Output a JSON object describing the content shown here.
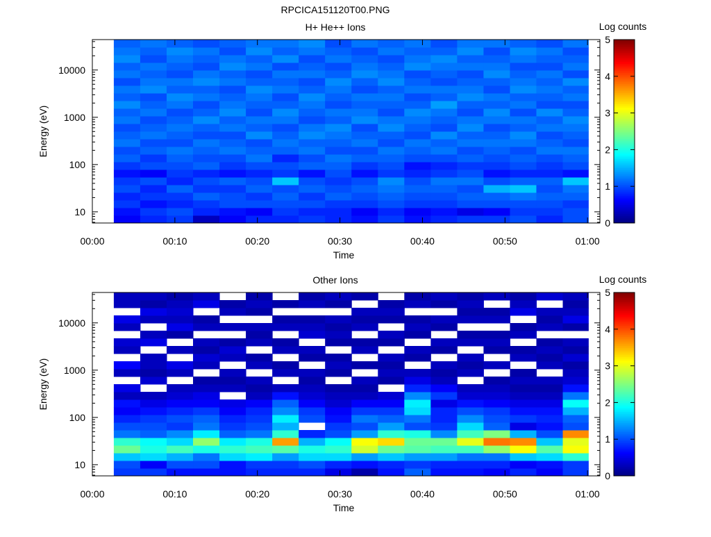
{
  "title": "RPCICA151120T00.PNG",
  "chart_data": [
    {
      "type": "heatmap",
      "title": "H+ He++ Ions",
      "xlabel": "Time",
      "ylabel": "Energy (eV)",
      "colorbar_label": "Log counts",
      "colorbar_ticks": [
        "0",
        "1",
        "2",
        "3",
        "4",
        "5"
      ],
      "clim": [
        0,
        5
      ],
      "colormap": "jet",
      "xlim_min": [
        0,
        61.5
      ],
      "x_ticks": [
        "00:00",
        "00:10",
        "00:20",
        "00:30",
        "00:40",
        "00:50",
        "01:00"
      ],
      "yscale": "log",
      "ylim": [
        5.8,
        44000
      ],
      "y_ticks": [
        "10",
        "100",
        "1000",
        "10000"
      ],
      "time_bin_start_min": [
        2.6,
        5.8,
        9.0,
        12.2,
        15.4,
        18.6,
        21.8,
        25.0,
        28.2,
        31.4,
        34.6,
        37.8,
        41.0,
        44.2,
        47.4,
        50.6,
        53.8,
        57.0
      ],
      "time_bin_end_min": 60.1,
      "energy_bins": 24,
      "values": [
        [
          0.6,
          0.7,
          0.9,
          0.8,
          1.0,
          0.9,
          0.7,
          0.9,
          1.1,
          1.0,
          1.2,
          1.1,
          1.0,
          1.2,
          1.1,
          1.3,
          1.1,
          1.2,
          1.0,
          1.2,
          1.1,
          1.3,
          1.2,
          1.1
        ],
        [
          0.8,
          0.9,
          0.7,
          0.9,
          0.8,
          1.0,
          0.6,
          1.0,
          0.9,
          1.1,
          1.0,
          1.2,
          1.1,
          1.0,
          1.2,
          1.1,
          1.0,
          1.3,
          1.2,
          1.1,
          1.2,
          1.0,
          1.1,
          1.2
        ],
        [
          0.9,
          1.0,
          0.8,
          0.9,
          1.1,
          0.8,
          0.9,
          1.0,
          1.1,
          1.2,
          1.0,
          1.1,
          1.2,
          1.1,
          1.0,
          1.2,
          1.3,
          1.1,
          1.2,
          1.0,
          1.1,
          1.2,
          1.3,
          1.1
        ],
        [
          0.3,
          0.8,
          0.9,
          1.1,
          0.9,
          1.0,
          0.8,
          1.1,
          1.0,
          1.1,
          1.2,
          1.0,
          1.1,
          1.3,
          1.1,
          1.0,
          1.2,
          1.1,
          1.3,
          1.2,
          1.0,
          1.1,
          1.2,
          1.0
        ],
        [
          0.6,
          0.7,
          1.0,
          1.0,
          0.9,
          1.1,
          0.7,
          0.9,
          1.0,
          1.2,
          1.1,
          1.0,
          1.2,
          1.1,
          1.3,
          1.2,
          1.1,
          1.0,
          1.2,
          1.1,
          1.3,
          1.2,
          1.0,
          1.1
        ],
        [
          0.8,
          0.6,
          1.0,
          0.9,
          1.1,
          1.0,
          0.8,
          1.0,
          1.2,
          1.1,
          1.0,
          1.3,
          1.1,
          1.2,
          1.0,
          1.1,
          1.2,
          1.3,
          1.1,
          1.0,
          1.2,
          1.1,
          1.3,
          1.2
        ],
        [
          0.8,
          0.9,
          1.0,
          1.1,
          1.0,
          1.6,
          0.9,
          1.0,
          0.8,
          1.1,
          1.2,
          1.1,
          1.0,
          1.2,
          1.3,
          1.1,
          1.0,
          1.2,
          1.1,
          1.2,
          1.0,
          1.3,
          1.1,
          1.2
        ],
        [
          0.9,
          0.8,
          1.0,
          0.9,
          1.1,
          1.0,
          0.7,
          1.1,
          1.0,
          1.2,
          1.1,
          1.3,
          1.2,
          1.0,
          1.1,
          1.2,
          1.3,
          1.1,
          1.0,
          1.2,
          1.1,
          1.0,
          1.2,
          1.3
        ],
        [
          0.8,
          0.8,
          0.9,
          1.1,
          1.0,
          0.9,
          1.0,
          1.1,
          1.2,
          1.0,
          1.1,
          1.2,
          1.3,
          1.1,
          1.2,
          1.0,
          1.1,
          1.2,
          1.3,
          1.1,
          1.0,
          1.2,
          1.1,
          1.0
        ],
        [
          0.7,
          0.6,
          0.9,
          1.0,
          1.1,
          1.0,
          0.7,
          0.9,
          1.1,
          1.0,
          1.2,
          1.1,
          1.0,
          1.3,
          1.2,
          1.1,
          1.2,
          1.0,
          1.1,
          1.3,
          1.2,
          1.1,
          1.0,
          1.2
        ],
        [
          0.9,
          0.8,
          1.0,
          1.1,
          1.2,
          1.3,
          0.9,
          1.0,
          1.1,
          1.2,
          1.0,
          1.1,
          1.3,
          1.2,
          1.0,
          1.1,
          1.2,
          1.1,
          1.3,
          1.2,
          1.1,
          1.0,
          1.2,
          1.1
        ],
        [
          0.7,
          0.6,
          0.9,
          1.0,
          1.1,
          1.0,
          0.8,
          0.7,
          1.0,
          1.1,
          1.2,
          1.0,
          1.1,
          1.2,
          1.3,
          1.1,
          1.0,
          1.2,
          1.1,
          1.0,
          1.3,
          1.2,
          1.1,
          1.2
        ],
        [
          0.8,
          0.7,
          0.9,
          1.0,
          1.1,
          1.2,
          0.9,
          0.8,
          1.0,
          1.2,
          1.1,
          1.3,
          1.0,
          1.1,
          1.2,
          1.4,
          1.1,
          1.2,
          1.0,
          1.1,
          1.2,
          1.3,
          1.1,
          1.0
        ],
        [
          0.9,
          0.5,
          1.0,
          1.1,
          1.0,
          1.2,
          1.0,
          0.9,
          1.1,
          1.0,
          1.2,
          1.1,
          1.3,
          1.2,
          1.0,
          1.1,
          1.3,
          1.2,
          1.1,
          1.0,
          1.2,
          1.1,
          1.3,
          1.2
        ],
        [
          0.9,
          0.6,
          1.0,
          1.1,
          1.5,
          1.0,
          0.7,
          0.9,
          1.0,
          1.1,
          1.2,
          1.1,
          1.0,
          1.2,
          1.3,
          1.1,
          1.2,
          1.0,
          1.1,
          1.3,
          1.2,
          1.1,
          1.0,
          1.2
        ],
        [
          1.0,
          0.9,
          1.0,
          1.2,
          1.6,
          1.1,
          0.8,
          1.0,
          1.1,
          1.0,
          1.2,
          1.3,
          1.1,
          1.2,
          1.0,
          1.2,
          1.1,
          1.3,
          1.2,
          1.1,
          1.0,
          1.2,
          1.3,
          1.1
        ],
        [
          0.8,
          0.9,
          1.0,
          1.1,
          1.0,
          1.1,
          0.8,
          0.9,
          1.0,
          1.2,
          1.1,
          1.0,
          1.2,
          1.1,
          1.3,
          1.0,
          1.1,
          1.2,
          1.1,
          1.2,
          1.0,
          1.1,
          1.2,
          1.0
        ],
        [
          1.0,
          1.0,
          0.9,
          1.1,
          1.2,
          1.6,
          0.7,
          1.0,
          1.1,
          1.2,
          1.0,
          1.1,
          1.2,
          1.3,
          1.1,
          1.0,
          1.2,
          1.1,
          1.3,
          1.0,
          1.2,
          1.1,
          1.0,
          1.2
        ]
      ]
    },
    {
      "type": "heatmap",
      "title": "Other Ions",
      "xlabel": "Time",
      "ylabel": "Energy (eV)",
      "colorbar_label": "Log counts",
      "colorbar_ticks": [
        "0",
        "1",
        "2",
        "3",
        "4",
        "5"
      ],
      "clim": [
        0,
        5
      ],
      "colormap": "jet",
      "xlim_min": [
        0,
        61.5
      ],
      "x_ticks": [
        "00:00",
        "00:10",
        "00:20",
        "00:30",
        "00:40",
        "00:50",
        "01:00"
      ],
      "yscale": "log",
      "ylim": [
        5.8,
        44000
      ],
      "y_ticks": [
        "10",
        "100",
        "1000",
        "10000"
      ],
      "time_bin_start_min": [
        2.6,
        5.8,
        9.0,
        12.2,
        15.4,
        18.6,
        21.8,
        25.0,
        28.2,
        31.4,
        34.6,
        37.8,
        41.0,
        44.2,
        47.4,
        50.6,
        53.8,
        57.0
      ],
      "time_bin_end_min": 60.1,
      "energy_bins": 24,
      "values": [
        [
          0.9,
          1.0,
          1.6,
          2.4,
          2.1,
          1.2,
          1.0,
          0.8,
          0.6,
          0.7,
          0.3,
          0.5,
          null,
          0.3,
          0.6,
          null,
          0.3,
          0.4,
          null,
          0.3,
          0.5,
          null,
          0.3,
          0.3
        ],
        [
          0.9,
          0.6,
          1.7,
          2.0,
          1.9,
          1.1,
          1.0,
          0.9,
          0.7,
          0.5,
          0.3,
          null,
          0.4,
          0.2,
          0.3,
          0.3,
          null,
          0.5,
          0.3,
          null,
          0.3,
          0.5,
          0.2,
          0.3
        ],
        [
          0.7,
          1.0,
          1.5,
          2.2,
          1.7,
          1.3,
          0.9,
          1.0,
          0.8,
          0.6,
          0.4,
          0.3,
          null,
          0.3,
          0.5,
          null,
          0.3,
          null,
          0.2,
          0.5,
          0.3,
          0.4,
          0.3,
          0.2
        ],
        [
          0.7,
          1.0,
          1.2,
          2.0,
          2.6,
          1.8,
          1.2,
          1.1,
          0.9,
          0.6,
          0.5,
          0.3,
          0.2,
          null,
          0.3,
          0.4,
          0.2,
          0.3,
          null,
          0.3,
          0.2,
          null,
          0.5,
          0.3
        ],
        [
          0.7,
          0.7,
          1.7,
          2.1,
          1.8,
          1.1,
          0.9,
          0.8,
          0.6,
          0.5,
          null,
          0.3,
          0.2,
          0.3,
          null,
          0.3,
          0.4,
          0.2,
          null,
          0.3,
          null,
          0.3,
          0.2,
          null
        ],
        [
          0.8,
          0.9,
          1.8,
          2.2,
          2.0,
          1.2,
          1.0,
          0.9,
          0.8,
          0.6,
          0.3,
          0.2,
          0.3,
          null,
          0.3,
          0.2,
          null,
          0.3,
          0.2,
          0.3,
          null,
          0.2,
          0.3,
          0.2
        ],
        [
          0.8,
          0.9,
          1.4,
          2.3,
          3.6,
          2.1,
          1.5,
          1.8,
          1.3,
          1.1,
          0.7,
          0.3,
          null,
          0.3,
          0.2,
          null,
          0.3,
          0.2,
          null,
          0.3,
          0.2,
          null,
          0.2,
          null
        ],
        [
          0.8,
          1.0,
          1.7,
          2.0,
          1.5,
          0.8,
          null,
          1.0,
          0.9,
          0.6,
          0.4,
          0.3,
          0.2,
          0.3,
          null,
          0.2,
          0.3,
          null,
          0.4,
          0.3,
          0.2,
          null,
          0.3,
          0.2
        ],
        [
          0.5,
          0.8,
          1.7,
          2.1,
          1.9,
          1.0,
          0.9,
          0.7,
          0.6,
          0.4,
          0.3,
          0.2,
          null,
          0.2,
          0.3,
          0.2,
          null,
          0.2,
          0.3,
          0.2,
          0.3,
          null,
          0.2,
          0.3
        ],
        [
          0.2,
          0.7,
          1.4,
          2.9,
          3.1,
          1.4,
          1.0,
          1.2,
          0.9,
          0.6,
          0.3,
          0.2,
          0.3,
          null,
          0.2,
          null,
          0.3,
          0.2,
          null,
          0.3,
          0.2,
          0.3,
          null,
          0.2
        ],
        [
          0.7,
          0.8,
          1.6,
          2.4,
          3.3,
          2.1,
          1.4,
          1.1,
          0.9,
          0.6,
          0.4,
          null,
          0.2,
          0.3,
          0.2,
          0.3,
          null,
          0.2,
          0.3,
          null,
          0.2,
          0.3,
          0.2,
          null
        ],
        [
          1.1,
          0.9,
          1.4,
          2.3,
          2.4,
          2.0,
          1.0,
          1.2,
          1.7,
          1.8,
          1.3,
          0.8,
          0.5,
          0.3,
          null,
          0.2,
          0.3,
          null,
          0.2,
          0.3,
          0.2,
          null,
          0.3,
          0.2
        ],
        [
          0.7,
          0.8,
          1.4,
          2.2,
          2.4,
          1.3,
          0.9,
          0.8,
          0.8,
          0.5,
          0.9,
          0.6,
          0.3,
          0.2,
          0.3,
          null,
          0.2,
          0.3,
          null,
          0.2,
          0.3,
          null,
          0.2,
          0.3
        ],
        [
          0.7,
          0.8,
          1.2,
          2.2,
          3.0,
          2.2,
          1.7,
          1.3,
          1.0,
          0.7,
          0.4,
          0.3,
          null,
          0.3,
          0.2,
          0.3,
          null,
          0.3,
          0.2,
          null,
          0.3,
          0.2,
          0.3,
          0.2
        ],
        [
          0.6,
          0.8,
          1.2,
          2.6,
          3.8,
          2.5,
          1.1,
          1.0,
          0.9,
          0.6,
          0.4,
          0.3,
          0.2,
          null,
          0.3,
          null,
          0.2,
          0.3,
          0.2,
          null,
          0.3,
          0.2,
          null,
          0.3
        ],
        [
          0.8,
          0.6,
          1.6,
          3.1,
          3.7,
          1.5,
          0.5,
          0.9,
          0.7,
          0.5,
          0.3,
          0.2,
          0.3,
          0.2,
          null,
          0.3,
          0.2,
          null,
          0.3,
          0.2,
          null,
          0.5,
          0.3,
          0.2
        ],
        [
          0.6,
          0.7,
          1.7,
          2.3,
          1.6,
          1.0,
          0.7,
          0.8,
          0.7,
          0.5,
          0.3,
          0.2,
          0.3,
          null,
          0.3,
          0.2,
          0.3,
          0.2,
          null,
          0.3,
          0.2,
          0.3,
          null,
          0.4
        ],
        [
          0.9,
          0.9,
          2.1,
          3.1,
          3.0,
          3.7,
          1.0,
          1.1,
          1.5,
          1.9,
          1.2,
          0.7,
          0.4,
          0.3,
          0.2,
          0.4,
          0.2,
          0.3,
          null,
          0.2,
          0.5,
          0.3,
          0.2,
          0.3
        ]
      ]
    }
  ]
}
